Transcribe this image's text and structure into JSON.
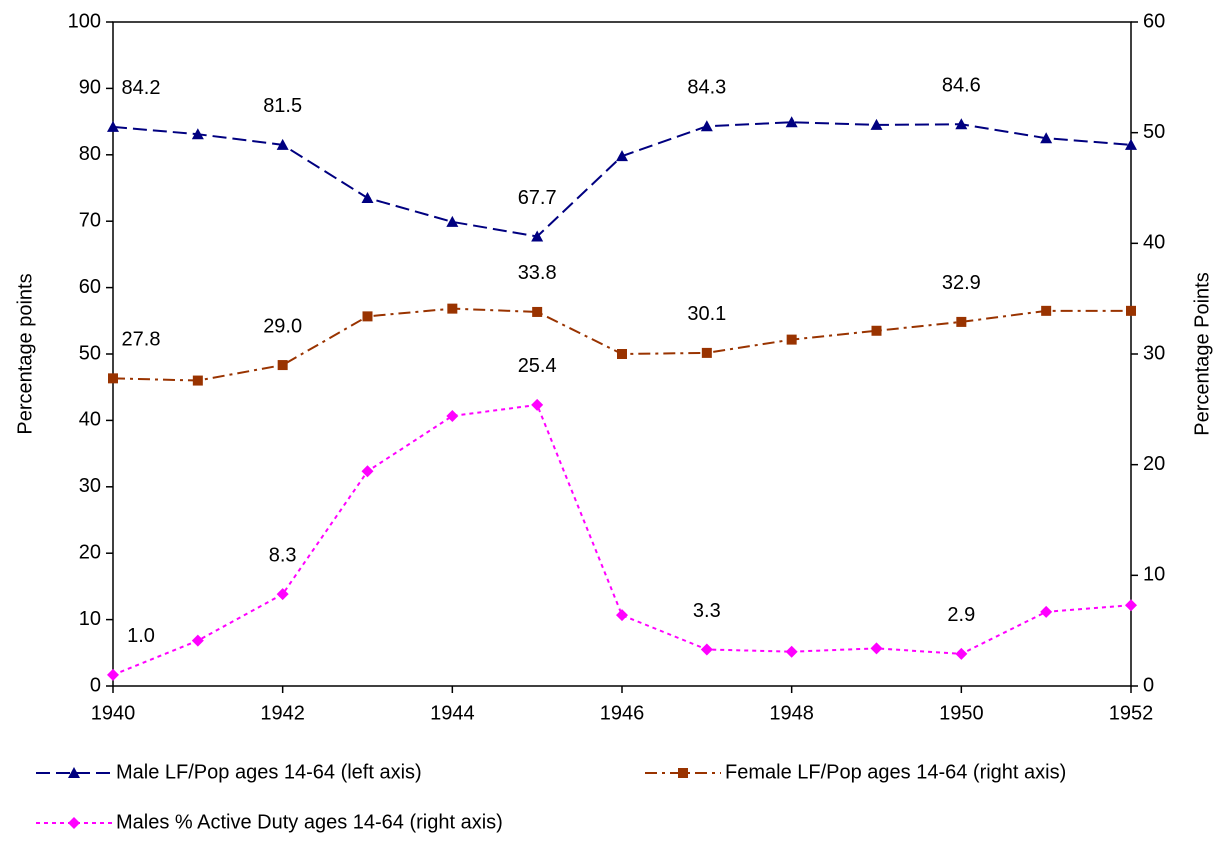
{
  "chart_data": {
    "type": "line",
    "x": [
      1940,
      1941,
      1942,
      1943,
      1944,
      1945,
      1946,
      1947,
      1948,
      1949,
      1950,
      1951,
      1952
    ],
    "xlim": [
      1940,
      1952
    ],
    "xticks": [
      1940,
      1942,
      1944,
      1946,
      1948,
      1950,
      1952
    ],
    "ylim": [
      0,
      100
    ],
    "yticks": [
      0,
      10,
      20,
      30,
      40,
      50,
      60,
      70,
      80,
      90,
      100
    ],
    "y2lim": [
      0,
      60
    ],
    "y2ticks": [
      0,
      10,
      20,
      30,
      40,
      50,
      60
    ],
    "ylabel": "Percentage points",
    "y2label": "Percentage Points",
    "legend": "bottom",
    "series": [
      {
        "name": "Male LF/Pop ages 14-64 (left axis)",
        "color": "#000080",
        "marker": "triangle",
        "line_style": "dashed",
        "values": [
          84.2,
          83.1,
          81.5,
          73.5,
          69.9,
          67.7,
          79.8,
          84.3,
          84.9,
          84.5,
          84.6,
          82.5,
          81.5
        ],
        "value_labels": [
          "84.2",
          null,
          "81.5",
          null,
          null,
          "67.7",
          null,
          "84.3",
          null,
          null,
          "84.6",
          null,
          null
        ]
      },
      {
        "name": "Female LF/Pop ages 14-64 (right axis)",
        "color": "#993300",
        "marker": "square",
        "line_style": "dashdot",
        "axis": "y2",
        "values": [
          27.8,
          27.6,
          29.0,
          33.4,
          34.1,
          33.8,
          30.0,
          30.1,
          31.3,
          32.1,
          32.9,
          33.9,
          33.9
        ],
        "value_labels": [
          "27.8",
          null,
          "29.0",
          null,
          null,
          "33.8",
          null,
          "30.1",
          null,
          null,
          "32.9",
          null,
          null
        ]
      },
      {
        "name": "Males % Active Duty ages 14-64 (right axis)",
        "color": "#ff00ff",
        "marker": "diamond",
        "line_style": "dotted",
        "axis": "y2",
        "values": [
          1.0,
          4.1,
          8.3,
          19.4,
          24.4,
          25.4,
          6.4,
          3.3,
          3.1,
          3.4,
          2.9,
          6.7,
          7.3
        ],
        "value_labels": [
          "1.0",
          null,
          "8.3",
          null,
          null,
          "25.4",
          null,
          "3.3",
          null,
          null,
          "2.9",
          null,
          null
        ]
      }
    ]
  }
}
